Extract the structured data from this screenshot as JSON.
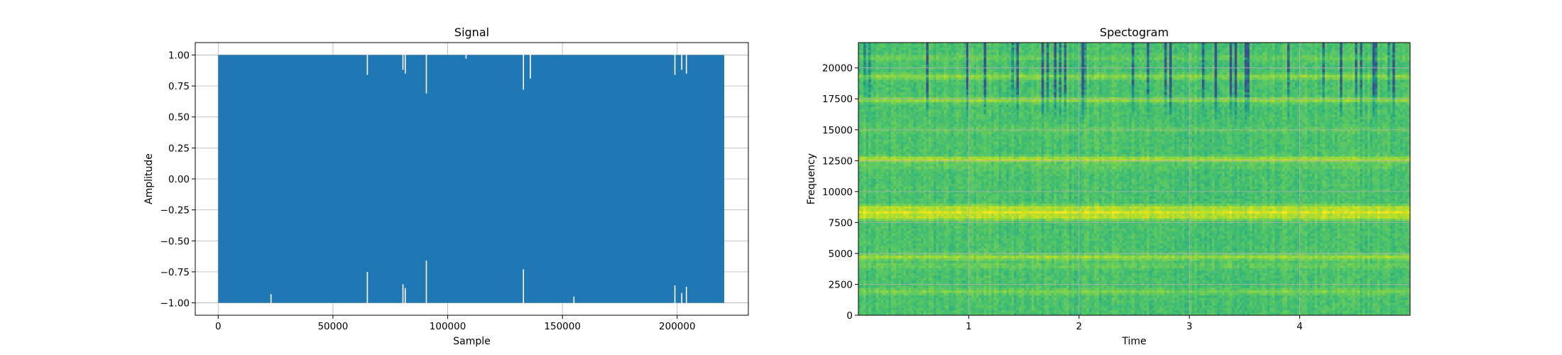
{
  "chart_data": [
    {
      "type": "area",
      "title": "Signal",
      "xlabel": "Sample",
      "ylabel": "Amplitude",
      "xlim": [
        -10000,
        231000
      ],
      "ylim": [
        -1.1,
        1.1
      ],
      "x_ticks": [
        0,
        50000,
        100000,
        150000,
        200000
      ],
      "x_tick_labels": [
        "0",
        "50000",
        "100000",
        "150000",
        "200000"
      ],
      "y_ticks": [
        -1.0,
        -0.75,
        -0.5,
        -0.25,
        0.0,
        0.25,
        0.5,
        0.75,
        1.0
      ],
      "y_tick_labels": [
        "−1.00",
        "−0.75",
        "−0.50",
        "−0.25",
        "0.00",
        "0.25",
        "0.50",
        "0.75",
        "1.00"
      ],
      "grid": true,
      "color": "#1f77b4",
      "series": [
        {
          "x_range": [
            0,
            220500
          ],
          "envelope_max": 1.0,
          "envelope_min": -1.0,
          "dips": [
            {
              "x": 23000,
              "top": 1.0,
              "bottom": -0.93
            },
            {
              "x": 65000,
              "top": 0.84,
              "bottom": -0.75
            },
            {
              "x": 80500,
              "top": 0.88,
              "bottom": -0.85
            },
            {
              "x": 81500,
              "top": 0.85,
              "bottom": -0.88
            },
            {
              "x": 90700,
              "top": 0.69,
              "bottom": -0.66
            },
            {
              "x": 108000,
              "top": 0.97,
              "bottom": -1.0
            },
            {
              "x": 133000,
              "top": 0.72,
              "bottom": -0.73
            },
            {
              "x": 136000,
              "top": 0.81,
              "bottom": -1.0
            },
            {
              "x": 155000,
              "top": 1.0,
              "bottom": -0.95
            },
            {
              "x": 199000,
              "top": 0.84,
              "bottom": -0.86
            },
            {
              "x": 202000,
              "top": 0.88,
              "bottom": -0.92
            },
            {
              "x": 204000,
              "top": 0.85,
              "bottom": -0.87
            }
          ]
        }
      ]
    },
    {
      "type": "heatmap",
      "title": "Spectogram",
      "xlabel": "Time",
      "ylabel": "Frequency",
      "xlim": [
        0,
        5.0
      ],
      "ylim": [
        0,
        22050
      ],
      "x_ticks": [
        1,
        2,
        3,
        4
      ],
      "x_tick_labels": [
        "1",
        "2",
        "3",
        "4"
      ],
      "y_ticks": [
        0,
        2500,
        5000,
        7500,
        10000,
        12500,
        15000,
        17500,
        20000
      ],
      "y_tick_labels": [
        "0",
        "2500",
        "5000",
        "7500",
        "10000",
        "12500",
        "15000",
        "17500",
        "20000"
      ],
      "grid": true,
      "colormap": [
        "#3b528b",
        "#21918c",
        "#35b779",
        "#5ec962",
        "#90d743",
        "#c8e020",
        "#fde725"
      ],
      "frequency_bands": [
        {
          "frequency": 1900,
          "intensity": 0.62
        },
        {
          "frequency": 4000,
          "intensity": 0.55
        },
        {
          "frequency": 4700,
          "intensity": 0.78
        },
        {
          "frequency": 7900,
          "intensity": 0.85
        },
        {
          "frequency": 8300,
          "intensity": 1.0
        },
        {
          "frequency": 8700,
          "intensity": 0.85
        },
        {
          "frequency": 12000,
          "intensity": 0.5
        },
        {
          "frequency": 12600,
          "intensity": 0.88
        },
        {
          "frequency": 15000,
          "intensity": 0.5
        },
        {
          "frequency": 17400,
          "intensity": 0.75
        },
        {
          "frequency": 19300,
          "intensity": 0.72
        },
        {
          "frequency": 20800,
          "intensity": 0.55
        }
      ],
      "transient_times": [
        0.05,
        0.11,
        0.62,
        0.98,
        1.15,
        1.4,
        1.45,
        1.68,
        1.71,
        1.78,
        1.82,
        1.88,
        2.04,
        2.05,
        2.48,
        2.62,
        2.78,
        2.83,
        3.12,
        3.24,
        3.38,
        3.42,
        3.5,
        3.54,
        3.9,
        4.22,
        4.38,
        4.5,
        4.56,
        4.66,
        4.7,
        4.81,
        4.86
      ]
    }
  ]
}
